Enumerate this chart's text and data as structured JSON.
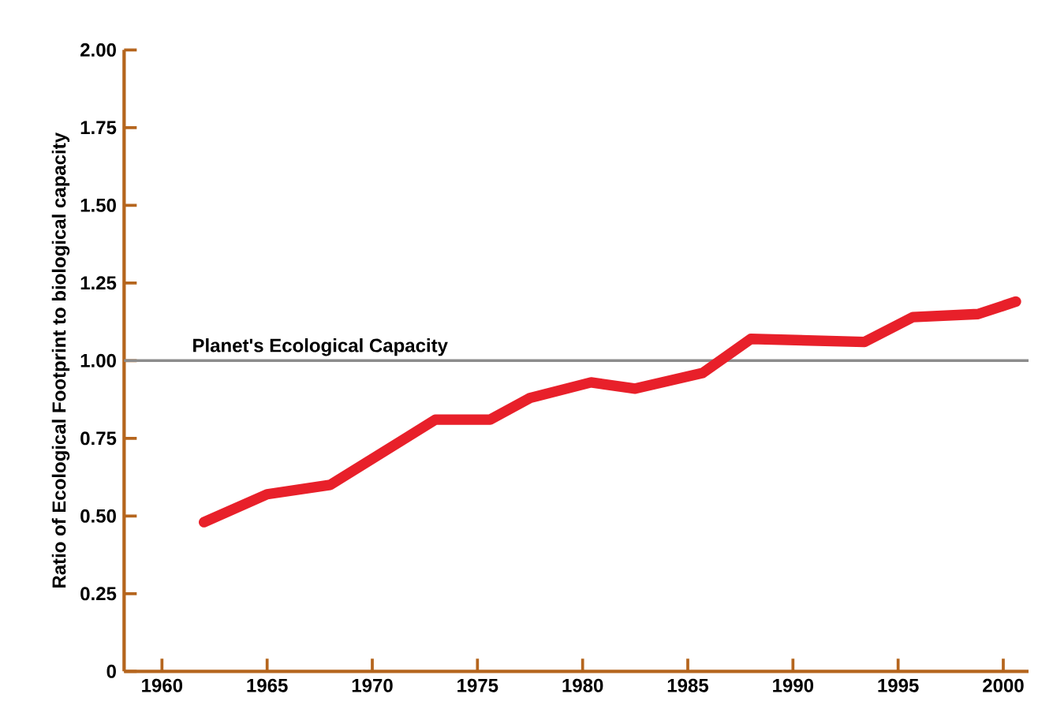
{
  "chart_data": {
    "type": "line",
    "ylabel": "Ratio of Ecological Footprint to biological capacity",
    "series": [
      {
        "color": "#e8202a",
        "x": [
          1962,
          1965,
          1968,
          1973,
          1975.6,
          1977.5,
          1980.4,
          1982.5,
          1985.7,
          1988,
          1993.4,
          1995.7,
          1998.8,
          2000.6
        ],
        "values": [
          0.48,
          0.57,
          0.6,
          0.81,
          0.81,
          0.88,
          0.93,
          0.91,
          0.96,
          1.07,
          1.06,
          1.14,
          1.15,
          1.19
        ]
      }
    ],
    "xlim": [
      1958.2,
      2001.2
    ],
    "ylim": [
      0,
      2
    ],
    "xticks": [
      1960,
      1965,
      1970,
      1975,
      1980,
      1985,
      1990,
      1995,
      2000
    ],
    "yticks": [
      0,
      0.25,
      {
        "value": 0.5,
        "label": "0.50"
      },
      0.75,
      {
        "value": 1,
        "label": "1.00"
      },
      1.25,
      {
        "value": 1.5,
        "label": "1.50"
      },
      1.75,
      {
        "value": 2,
        "label": "2.00"
      }
    ],
    "ref_lines": [
      {
        "axis": "y",
        "value": 1,
        "label": "Planet's Ecological Capacity",
        "color": "#8c8c8c"
      }
    ],
    "grid": false,
    "marker": "none",
    "line_style": "solid"
  }
}
